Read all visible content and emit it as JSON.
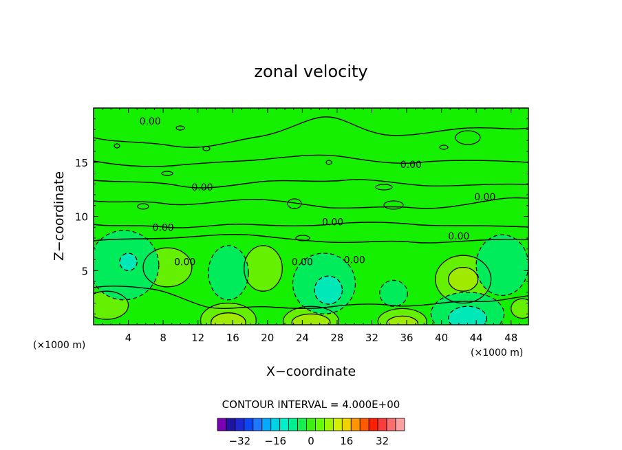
{
  "chart_data": {
    "type": "contour",
    "title": "zonal velocity",
    "xlabel": "X−coordinate",
    "ylabel": "Z−coordinate",
    "x_unit_label": "(×1000 m)",
    "y_unit_label": "(×1000 m)",
    "xlim": [
      0,
      50
    ],
    "ylim": [
      0,
      20
    ],
    "x_ticks": [
      4,
      8,
      12,
      16,
      20,
      24,
      28,
      32,
      36,
      40,
      44,
      48
    ],
    "y_ticks": [
      5,
      10,
      15
    ],
    "contour_interval_text": "CONTOUR INTERVAL = 4.000E+00",
    "contour_labels": [
      {
        "text": "0.00",
        "x": 6.5,
        "z": 18.8
      },
      {
        "text": "0.00",
        "x": 36.5,
        "z": 14.8
      },
      {
        "text": "0.00",
        "x": 12.5,
        "z": 12.7
      },
      {
        "text": "0.00",
        "x": 45.0,
        "z": 11.8
      },
      {
        "text": "0.00",
        "x": 27.5,
        "z": 9.5
      },
      {
        "text": "0.00",
        "x": 8.0,
        "z": 9.0
      },
      {
        "text": "0.00",
        "x": 42.0,
        "z": 8.2
      },
      {
        "text": "0.00",
        "x": 10.5,
        "z": 5.8
      },
      {
        "text": "0.00",
        "x": 24.0,
        "z": 5.8
      },
      {
        "text": "0.00",
        "x": 30.0,
        "z": 6.0
      }
    ],
    "features": [
      {
        "kind": "positive",
        "level": 1,
        "x": 15.5,
        "z": 0.4,
        "rx": 3.2,
        "rz": 1.6
      },
      {
        "kind": "positive",
        "level": 2,
        "x": 15.5,
        "z": 0.2,
        "rx": 2.0,
        "rz": 0.9
      },
      {
        "kind": "positive",
        "level": 1,
        "x": 25.0,
        "z": 0.3,
        "rx": 3.2,
        "rz": 1.4
      },
      {
        "kind": "positive",
        "level": 2,
        "x": 25.0,
        "z": 0.2,
        "rx": 2.2,
        "rz": 0.8
      },
      {
        "kind": "positive",
        "level": 1,
        "x": 35.5,
        "z": 0.3,
        "rx": 2.8,
        "rz": 1.2
      },
      {
        "kind": "positive",
        "level": 2,
        "x": 35.5,
        "z": 0.1,
        "rx": 1.8,
        "rz": 0.7
      },
      {
        "kind": "positive",
        "level": 1,
        "x": 8.5,
        "z": 5.3,
        "rx": 2.8,
        "rz": 1.8
      },
      {
        "kind": "positive",
        "level": 1,
        "x": 19.5,
        "z": 5.2,
        "rx": 2.2,
        "rz": 2.1
      },
      {
        "kind": "positive",
        "level": 1,
        "x": 42.5,
        "z": 4.2,
        "rx": 3.2,
        "rz": 2.2
      },
      {
        "kind": "positive",
        "level": 2,
        "x": 42.5,
        "z": 4.2,
        "rx": 1.7,
        "rz": 1.1
      },
      {
        "kind": "positive",
        "level": 1,
        "x": 49.3,
        "z": 1.5,
        "rx": 1.3,
        "rz": 0.9
      },
      {
        "kind": "positive",
        "level": 1,
        "x": 1.5,
        "z": 1.8,
        "rx": 2.5,
        "rz": 1.3
      },
      {
        "kind": "negative",
        "level": 1,
        "x": 3.5,
        "z": 5.5,
        "rx": 4.0,
        "rz": 3.2
      },
      {
        "kind": "negative",
        "level": 2,
        "x": 4.0,
        "z": 5.8,
        "rx": 1.0,
        "rz": 0.8
      },
      {
        "kind": "negative",
        "level": 1,
        "x": 15.5,
        "z": 4.8,
        "rx": 2.3,
        "rz": 2.5
      },
      {
        "kind": "negative",
        "level": 1,
        "x": 26.5,
        "z": 3.8,
        "rx": 3.6,
        "rz": 2.8
      },
      {
        "kind": "negative",
        "level": 2,
        "x": 27.0,
        "z": 3.2,
        "rx": 1.6,
        "rz": 1.3
      },
      {
        "kind": "negative",
        "level": 1,
        "x": 34.5,
        "z": 2.9,
        "rx": 1.6,
        "rz": 1.2
      },
      {
        "kind": "negative",
        "level": 1,
        "x": 43.0,
        "z": 1.0,
        "rx": 4.2,
        "rz": 2.0
      },
      {
        "kind": "negative",
        "level": 2,
        "x": 43.0,
        "z": 0.6,
        "rx": 2.2,
        "rz": 1.1
      },
      {
        "kind": "negative",
        "level": 1,
        "x": 47.0,
        "z": 5.5,
        "rx": 3.0,
        "rz": 2.8
      }
    ],
    "colorbar": {
      "colors": [
        "#7a00b4",
        "#1e14a0",
        "#1e28d2",
        "#0a46f5",
        "#1e78ff",
        "#00aaff",
        "#00d2e6",
        "#00f0c8",
        "#00f090",
        "#14f050",
        "#3cf014",
        "#64ff00",
        "#a0f500",
        "#d2f000",
        "#f0d200",
        "#ff9600",
        "#ff5a00",
        "#ff1e00",
        "#fa3c3c",
        "#fa6e6e",
        "#faa0a0"
      ],
      "tick_values": [
        -32,
        -16,
        0,
        16,
        32
      ],
      "tick_labels": [
        "−32",
        "−16",
        "0",
        "16",
        "32"
      ],
      "vmin": -42,
      "vmax": 42
    },
    "background_color": "#14f000",
    "fill_colors": {
      "pos1": "#64f000",
      "pos2": "#a0ea00",
      "neg1": "#00ec5a",
      "neg2": "#00e8b8"
    }
  }
}
